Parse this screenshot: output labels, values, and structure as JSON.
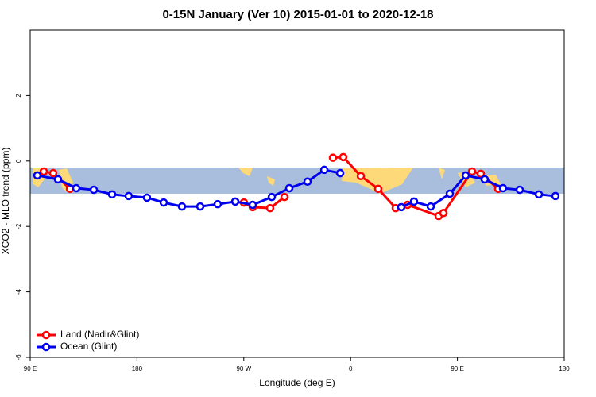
{
  "chart_data": {
    "type": "line",
    "title": "0-15N January (Ver 10)   2015-01-01 to 2020-12-18",
    "x_label": "Longitude (deg E)",
    "y_label": "XCO2 - MLO trend (ppm)",
    "xlim": [
      90,
      540
    ],
    "xticks": [
      {
        "value": 90,
        "label": "90 E"
      },
      {
        "value": 180,
        "label": "180"
      },
      {
        "value": 270,
        "label": "90 W"
      },
      {
        "value": 360,
        "label": "0"
      },
      {
        "value": 450,
        "label": "90 E"
      },
      {
        "value": 540,
        "label": "180"
      }
    ],
    "ylim": [
      -6,
      4
    ],
    "yticks": [
      -6,
      -4,
      -2,
      0,
      2
    ],
    "legend": "bottom-left",
    "series": [
      {
        "name": "Land (Nadir&Glint)",
        "color": "#ff0000",
        "x": [
          101.4,
          109.4,
          123.5,
          null,
          270.1,
          277.5,
          292.2,
          304.3,
          null,
          345.1,
          353.8,
          368.6,
          383.3,
          398,
          408,
          434.2,
          438.2,
          462.3,
          469.7,
          484.4
        ],
        "values": [
          -0.32,
          -0.37,
          -0.85,
          null,
          -1.27,
          -1.41,
          -1.44,
          -1.1,
          null,
          0.1,
          0.12,
          -0.46,
          -0.85,
          -1.44,
          -1.34,
          -1.68,
          -1.59,
          -0.32,
          -0.39,
          -0.85
        ]
      },
      {
        "name": "Ocean (Glint)",
        "color": "#0000ee",
        "x": [
          96,
          113.4,
          128.8,
          143.6,
          159,
          173,
          188.4,
          202.5,
          217.9,
          233.3,
          248,
          262.8,
          277.5,
          293.6,
          308.3,
          323.7,
          337.8,
          351.2,
          null,
          402.7,
          413.4,
          427.5,
          443.6,
          457,
          473,
          488.4,
          502.5,
          518.6,
          532.6
        ],
        "values": [
          -0.44,
          -0.56,
          -0.83,
          -0.88,
          -1.02,
          -1.07,
          -1.12,
          -1.27,
          -1.39,
          -1.39,
          -1.32,
          -1.24,
          -1.34,
          -1.1,
          -0.83,
          -0.63,
          -0.27,
          -0.37,
          null,
          -1.41,
          -1.24,
          -1.39,
          -1.0,
          -0.44,
          -0.56,
          -0.83,
          -0.88,
          -1.02,
          -1.07
        ]
      }
    ]
  }
}
